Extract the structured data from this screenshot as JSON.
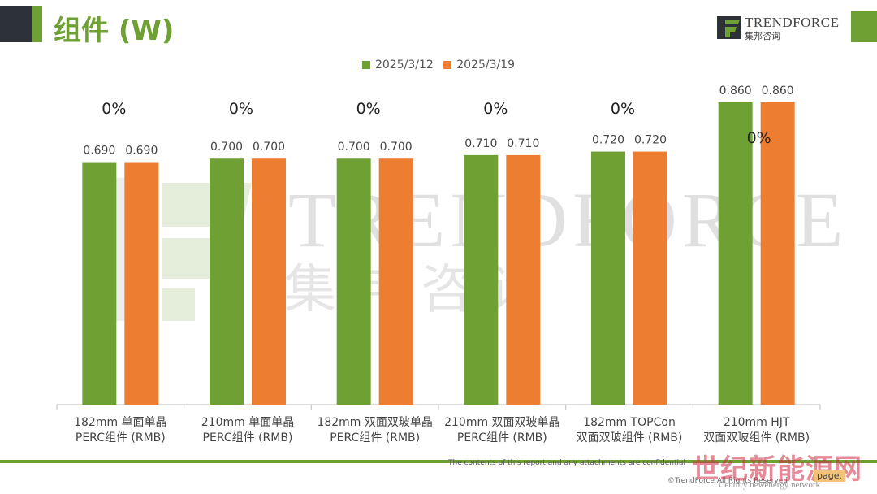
{
  "header": {
    "title": "组件 (W)",
    "logo_text": "TRENDFORCE",
    "logo_sub": "集邦咨询"
  },
  "watermark": {
    "text": "TRENDFORCE",
    "cn": "集邦咨询"
  },
  "colors": {
    "series_a": "#6fa034",
    "series_b": "#ed7d31",
    "accent": "#6fa034"
  },
  "chart_data": {
    "type": "bar",
    "categories": [
      [
        "182mm 单面单晶",
        "PERC组件 (RMB)"
      ],
      [
        "210mm 单面单晶",
        "PERC组件 (RMB)"
      ],
      [
        "182mm 双面双玻单晶",
        "PERC组件 (RMB)"
      ],
      [
        "210mm 双面双玻单晶",
        "PERC组件 (RMB)"
      ],
      [
        "182mm TOPCon",
        "双面双玻组件 (RMB)"
      ],
      [
        "210mm HJT",
        "双面双玻组件 (RMB)"
      ]
    ],
    "series": [
      {
        "name": "2025/3/12",
        "values": [
          0.69,
          0.7,
          0.7,
          0.71,
          0.72,
          0.86
        ]
      },
      {
        "name": "2025/3/19",
        "values": [
          0.69,
          0.7,
          0.7,
          0.71,
          0.72,
          0.86
        ]
      }
    ],
    "value_labels": [
      [
        "0.690",
        "0.700",
        "0.700",
        "0.710",
        "0.720",
        "0.860"
      ],
      [
        "0.690",
        "0.700",
        "0.700",
        "0.710",
        "0.720",
        "0.860"
      ]
    ],
    "change_labels": [
      "0%",
      "0%",
      "0%",
      "0%",
      "0%",
      "0%"
    ],
    "ylim": [
      0,
      0.86
    ],
    "grid": false,
    "legend_position": "top-center"
  },
  "footer": {
    "note": "The contents of this report and any attachments are confidential",
    "copyright": "©TrendForce All Rights Reserved",
    "page": "page.",
    "wm2": "世纪新能源网",
    "wm2_sub": "Century newenergy network"
  }
}
